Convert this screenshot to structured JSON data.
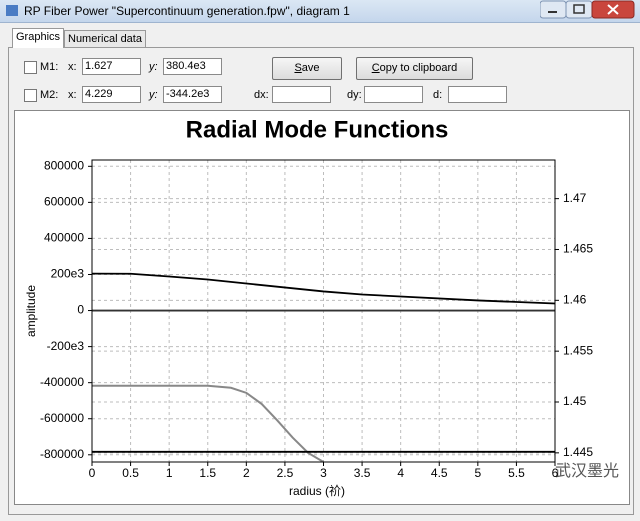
{
  "window": {
    "title": "RP Fiber Power \"Supercontinuum generation.fpw\", diagram 1"
  },
  "tabs": [
    "Graphics",
    "Numerical data"
  ],
  "markers": [
    {
      "label": "M1:",
      "x_label": "x:",
      "x": "1.627",
      "y_label": "y:",
      "y": "380.4e3"
    },
    {
      "label": "M2:",
      "x_label": "x:",
      "x": "4.229",
      "y_label": "y:",
      "y": "-344.2e3"
    }
  ],
  "buttons": [
    "Save",
    "Copy to clipboard"
  ],
  "fields": [
    "dx:",
    "dy:",
    "d:"
  ],
  "watermark": "武汉墨光",
  "chart_data": {
    "type": "line",
    "title": "Radial Mode Functions",
    "x_label": "radius (祄)",
    "y_label": "amplitude",
    "xlim": [
      0,
      6
    ],
    "xticks": [
      0,
      0.5,
      1,
      1.5,
      2,
      2.5,
      3,
      3.5,
      4,
      4.5,
      5,
      5.5,
      6
    ],
    "ylim": [
      -840000,
      835000
    ],
    "yticks": [
      -800000,
      -600000,
      -400000,
      {
        "value": -200000,
        "label": "-200e3"
      },
      0,
      {
        "value": 200000,
        "label": "200e3"
      },
      400000,
      600000,
      800000
    ],
    "y2lim": [
      1.4441,
      1.4738
    ],
    "y2ticks": [
      1.445,
      1.45,
      1.455,
      1.46,
      1.465,
      1.47
    ],
    "grid": true,
    "series": [
      {
        "color": "#000000",
        "x": [
          0,
          0.5,
          1,
          1.5,
          2,
          3,
          3.5,
          4,
          5,
          6
        ],
        "values": [
          205000,
          204000,
          189000,
          172000,
          150000,
          106000,
          89000,
          78000,
          56000,
          39000
        ]
      },
      {
        "color": "#333333",
        "x": [
          0,
          6
        ],
        "values": [
          0,
          0
        ]
      },
      {
        "color": "#888888",
        "axis": "y2",
        "x": [
          0,
          1,
          1.5,
          1.8,
          2,
          2.2,
          2.4,
          2.6,
          2.8,
          3
        ],
        "values": [
          1.4516,
          1.4516,
          1.4516,
          1.4514,
          1.4509,
          1.4498,
          1.4482,
          1.4465,
          1.445,
          1.4441
        ]
      },
      {
        "color": "#000000",
        "axis": "y2",
        "x": [
          0,
          6
        ],
        "values": [
          1.4451,
          1.4451
        ]
      }
    ]
  }
}
